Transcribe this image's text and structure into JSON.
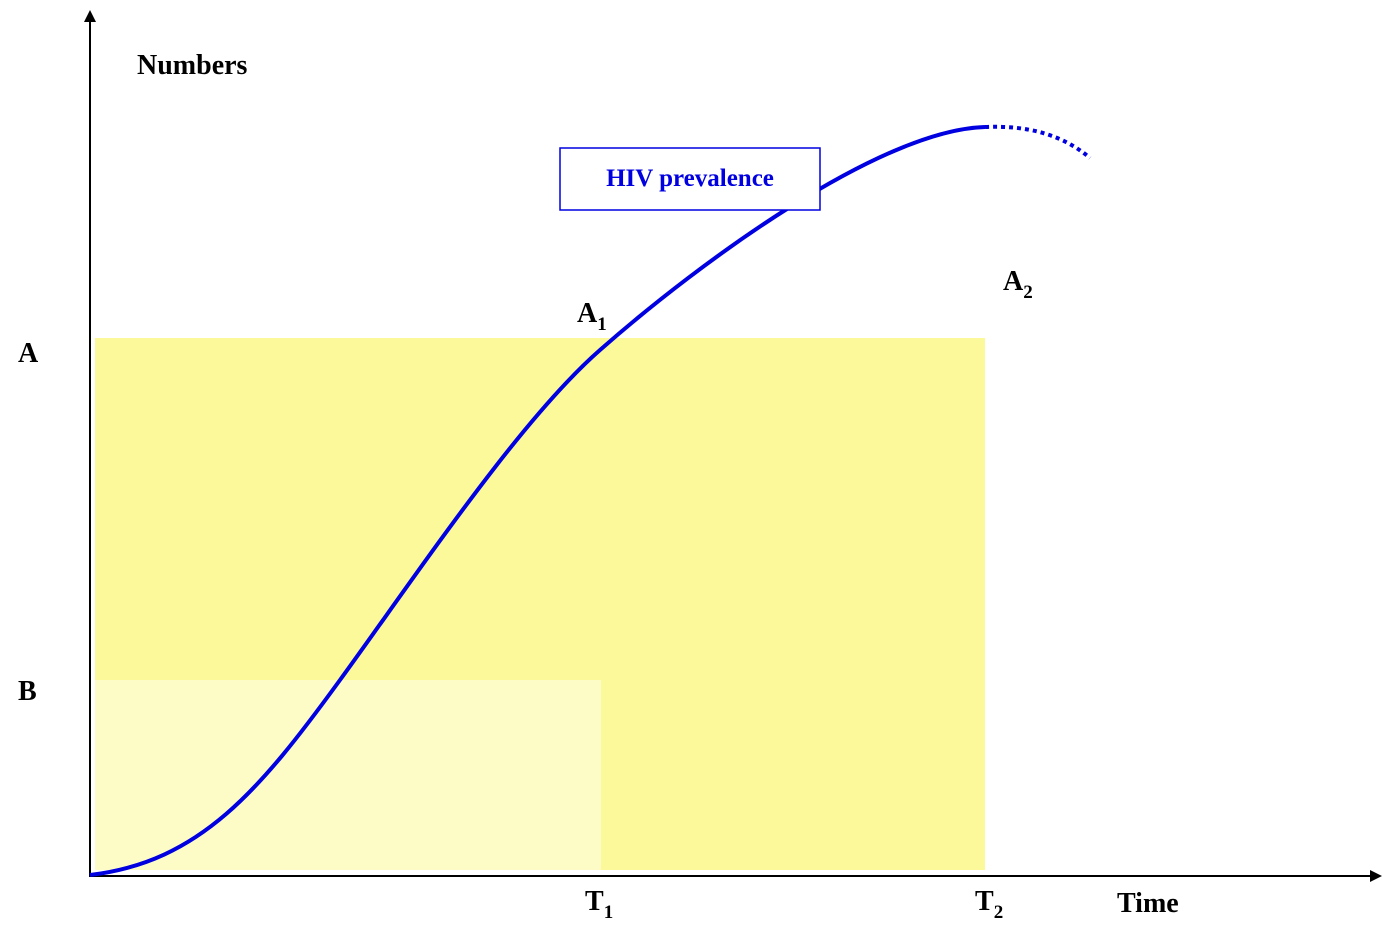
{
  "axes": {
    "y_label": "Numbers",
    "x_label": "Time"
  },
  "curve_label": "HIV prevalence",
  "levels": [
    {
      "label": "A"
    },
    {
      "label": "B"
    }
  ],
  "points": [
    {
      "label": "A",
      "sub": "1"
    },
    {
      "label": "A",
      "sub": "2"
    }
  ],
  "times": [
    {
      "label": "T",
      "sub": "1"
    },
    {
      "label": "T",
      "sub": "2"
    }
  ]
}
